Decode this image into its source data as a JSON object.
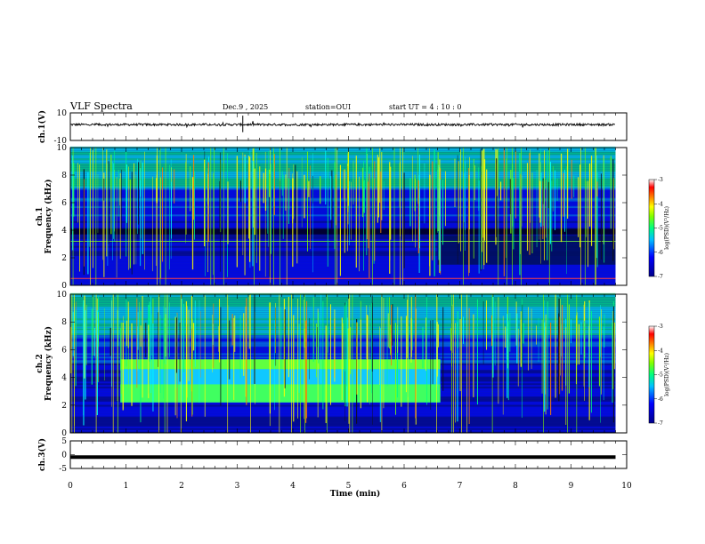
{
  "header": {
    "title": "VLF Spectra",
    "date": "Dec.9 , 2025",
    "station": "station=OUI",
    "start": "start UT = 4 : 10 : 0"
  },
  "colors": {
    "spectrogram": [
      "#00008b",
      "#0000ff",
      "#0080ff",
      "#00ffff",
      "#00ff80",
      "#80ff00",
      "#ffff00",
      "#ff8000",
      "#ff0000",
      "#ffffff"
    ]
  },
  "chart_data": [
    {
      "type": "line",
      "panel": "ch1-waveform",
      "ylabel": "ch.1(V)",
      "ylim": [
        -10,
        10
      ],
      "yticks": [
        "10",
        "-10"
      ],
      "x": [
        0,
        9.8
      ],
      "series": [
        {
          "values": [
            1.5,
            1.5
          ]
        }
      ]
    },
    {
      "type": "heatmap",
      "panel": "ch1-spectrogram",
      "ylabel": "ch.1\nFrequency (kHz)",
      "ylim": [
        0,
        10
      ],
      "yticks": [
        "0",
        "2",
        "4",
        "6",
        "8",
        "10"
      ],
      "xlim": [
        0,
        10
      ],
      "colorbar": {
        "label": "log(PSD)(V²/Hz)",
        "ticks": [
          "-3",
          "-4",
          "-5",
          "-6",
          "-7"
        ],
        "range": [
          -7,
          -3
        ]
      }
    },
    {
      "type": "heatmap",
      "panel": "ch2-spectrogram",
      "ylabel": "ch.2\nFrequency (kHz)",
      "ylim": [
        0,
        10
      ],
      "yticks": [
        "0",
        "2",
        "4",
        "6",
        "8",
        "10"
      ],
      "xlim": [
        0,
        10
      ],
      "colorbar": {
        "label": "log(PSD)(V²/Hz)",
        "ticks": [
          "-3",
          "-4",
          "-5",
          "-6",
          "-7"
        ],
        "range": [
          -7,
          -3
        ]
      },
      "features": [
        {
          "name": "band",
          "t_start": 0.9,
          "t_end": 6.65,
          "f_low": 2.2,
          "f_high": 5.3
        }
      ]
    },
    {
      "type": "line",
      "panel": "ch3-waveform",
      "ylabel": "ch.3(V)",
      "ylim": [
        -5,
        5
      ],
      "yticks": [
        "5",
        "0",
        "-5"
      ],
      "x": [
        0,
        9.8
      ],
      "series": [
        {
          "values": [
            -0.9,
            -0.9
          ]
        }
      ]
    }
  ],
  "xaxis": {
    "label": "Time (min)",
    "ticks": [
      "0",
      "1",
      "2",
      "3",
      "4",
      "5",
      "6",
      "7",
      "8",
      "9",
      "10"
    ],
    "range": [
      0,
      10
    ]
  }
}
